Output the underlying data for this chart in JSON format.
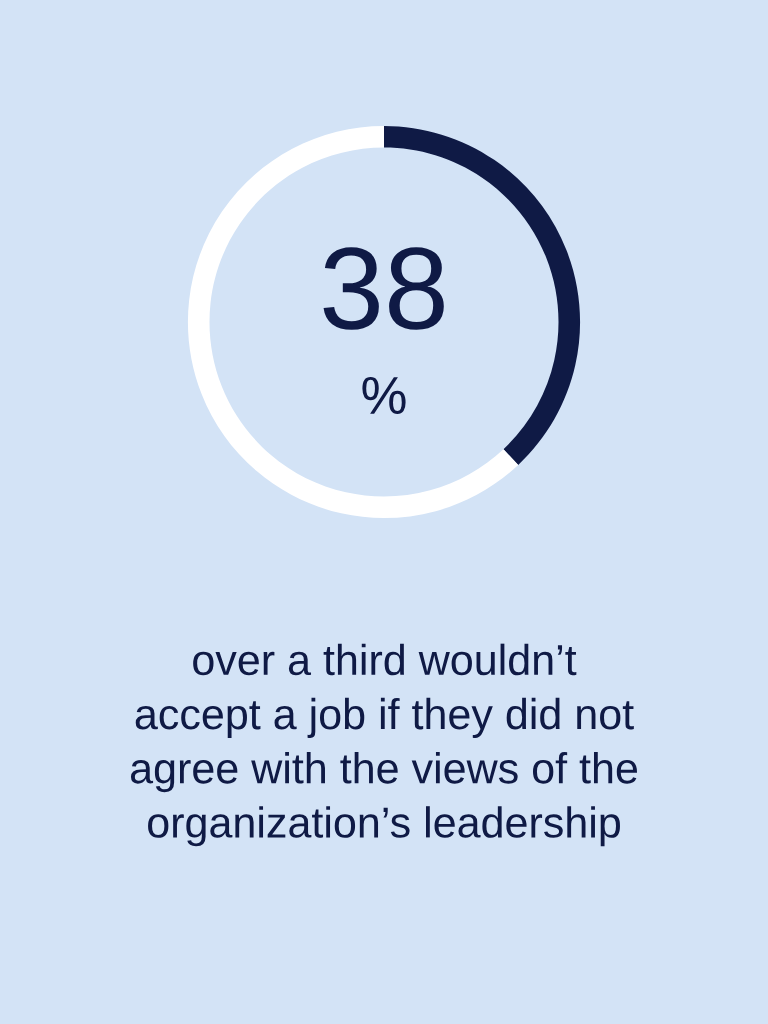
{
  "chart_data": {
    "type": "donut",
    "categories": [
      null,
      null
    ],
    "values": [
      38,
      62
    ],
    "colors": [
      "#0f1a45",
      "#ffffff"
    ],
    "value_labels": [
      "38",
      null
    ],
    "annotations": [
      "%",
      "over a third wouldn’t\naccept a job if they did not\nagree with the views of the\norganization’s leadership"
    ]
  }
}
